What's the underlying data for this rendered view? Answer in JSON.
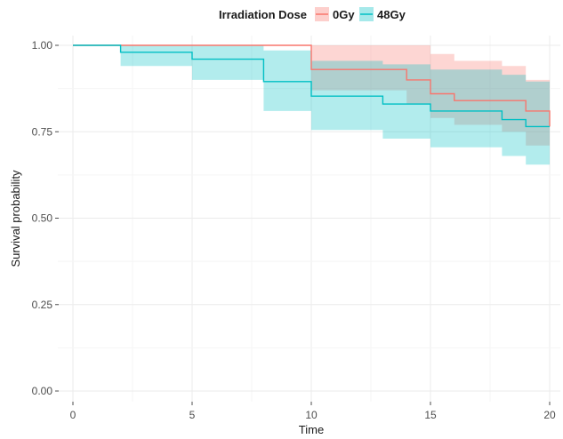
{
  "chart_data": {
    "type": "line",
    "xlabel": "Time",
    "ylabel": "Survival probability",
    "xlim": [
      0,
      20
    ],
    "ylim": [
      0,
      1
    ],
    "x_ticks": [
      0,
      5,
      10,
      15,
      20
    ],
    "x_tick_labels": [
      "0",
      "5",
      "10",
      "15",
      "20"
    ],
    "y_ticks": [
      0,
      0.25,
      0.5,
      0.75,
      1
    ],
    "y_tick_labels": [
      "0.00",
      "0.25",
      "0.50",
      "0.75",
      "1.00"
    ],
    "grid": true,
    "legend": {
      "title": "Irradiation Dose",
      "position": "top"
    },
    "series": [
      {
        "name": "0Gy",
        "color": "#F8766D",
        "fill": "#F8766D",
        "x": [
          0,
          10,
          13,
          14,
          15,
          16,
          18,
          19,
          20
        ],
        "y": [
          1.0,
          0.93,
          0.93,
          0.9,
          0.86,
          0.84,
          0.84,
          0.81,
          0.765
        ],
        "lower": [
          1.0,
          0.87,
          0.87,
          0.83,
          0.79,
          0.77,
          0.75,
          0.71,
          0.65
        ],
        "upper": [
          1.0,
          1.0,
          1.0,
          1.0,
          0.975,
          0.955,
          0.94,
          0.9,
          0.9
        ]
      },
      {
        "name": "48Gy",
        "color": "#00BFC4",
        "fill": "#00BFC4",
        "x": [
          0,
          2,
          5,
          8,
          10,
          13,
          15,
          18,
          19,
          20
        ],
        "y": [
          1.0,
          0.98,
          0.96,
          0.895,
          0.853,
          0.83,
          0.81,
          0.785,
          0.765,
          0.765
        ],
        "lower": [
          1.0,
          0.94,
          0.9,
          0.81,
          0.755,
          0.73,
          0.705,
          0.68,
          0.655,
          0.655
        ],
        "upper": [
          1.0,
          1.0,
          1.0,
          0.985,
          0.955,
          0.945,
          0.93,
          0.915,
          0.895,
          0.895
        ]
      }
    ]
  }
}
